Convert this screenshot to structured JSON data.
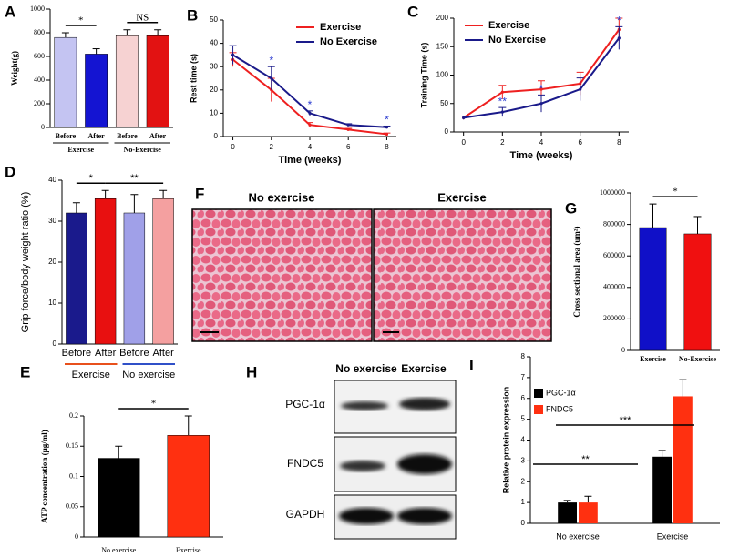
{
  "chart_data": [
    {
      "label": "A",
      "type": "bar",
      "ylabel": "Weight(g)",
      "categories": [
        "Before",
        "After",
        "Before",
        "After"
      ],
      "groups": [
        "Exercise",
        "No-Exercise"
      ],
      "values": [
        760,
        620,
        775,
        775
      ],
      "errors": [
        40,
        45,
        50,
        50
      ],
      "colors": [
        "#c4c4f2",
        "#1414d2",
        "#f6d2d2",
        "#e21212"
      ],
      "ylim": [
        0,
        1000
      ],
      "yticks": [
        0,
        200,
        400,
        600,
        800,
        1000
      ],
      "annotations": [
        "*",
        "NS"
      ]
    },
    {
      "label": "B",
      "type": "line",
      "xlabel": "Time (weeks)",
      "ylabel": "Rest time (s)",
      "x": [
        0,
        2,
        4,
        6,
        8
      ],
      "xlim": [
        -0.5,
        8.5
      ],
      "xticks": [
        0,
        2,
        4,
        6,
        8
      ],
      "ylim": [
        0,
        50
      ],
      "yticks": [
        0,
        10,
        20,
        30,
        40,
        50
      ],
      "legend": "upper right",
      "series": [
        {
          "name": "Exercise",
          "color": "#ee2020",
          "values": [
            33,
            20,
            5,
            3,
            1
          ],
          "errors": [
            3,
            5,
            1,
            0.5,
            0.5
          ]
        },
        {
          "name": "No Exercise",
          "color": "#1a1a8a",
          "values": [
            35,
            25,
            10,
            5,
            4
          ],
          "errors": [
            4,
            5,
            1,
            0.5,
            0.5
          ]
        }
      ],
      "annotations": [
        "*",
        "*",
        "*"
      ]
    },
    {
      "label": "C",
      "type": "line",
      "xlabel": "Time (weeks)",
      "ylabel": "Training Time (s)",
      "x": [
        0,
        2,
        4,
        6,
        8
      ],
      "xlim": [
        -0.5,
        8.5
      ],
      "xticks": [
        0,
        2,
        4,
        6,
        8
      ],
      "ylim": [
        0,
        200
      ],
      "yticks": [
        0,
        50,
        100,
        150,
        200
      ],
      "legend": "upper left",
      "series": [
        {
          "name": "Exercise",
          "color": "#ee2020",
          "values": [
            25,
            70,
            75,
            85,
            180
          ],
          "errors": [
            3,
            12,
            15,
            20,
            20
          ]
        },
        {
          "name": "No Exercise",
          "color": "#1a1a8a",
          "values": [
            25,
            35,
            50,
            75,
            165
          ],
          "errors": [
            3,
            8,
            15,
            20,
            20
          ]
        }
      ],
      "annotations": [
        "**",
        "*",
        "*"
      ]
    },
    {
      "label": "D",
      "type": "bar",
      "ylabel": "Grip force/body weight ratio (%)",
      "categories": [
        "Before",
        "After",
        "Before",
        "After"
      ],
      "groups": [
        "Exercise",
        "No exercise"
      ],
      "group_colors": [
        "#e8501c",
        "#3050c8"
      ],
      "values": [
        32,
        35.5,
        32,
        35.5
      ],
      "errors": [
        2.5,
        2,
        4.5,
        2
      ],
      "colors": [
        "#1a1a8c",
        "#e81010",
        "#a0a0e8",
        "#f4a0a0"
      ],
      "ylim": [
        0,
        40
      ],
      "yticks": [
        0,
        10,
        20,
        30,
        40
      ],
      "annotations": [
        "*",
        "**"
      ]
    },
    {
      "label": "G",
      "type": "bar",
      "ylabel": "Cross sectional area (um²)",
      "categories": [
        "Exercise",
        "No-Exercise"
      ],
      "values": [
        780000,
        740000
      ],
      "errors": [
        150000,
        110000
      ],
      "colors": [
        "#1010c8",
        "#f01010"
      ],
      "ylim": [
        0,
        1000000
      ],
      "yticks": [
        0,
        200000,
        400000,
        600000,
        800000,
        1000000
      ],
      "annotations": [
        "*"
      ]
    },
    {
      "label": "E",
      "type": "bar",
      "ylabel": "ATP concentration (μg/ml)",
      "categories": [
        "No exercise",
        "Exercise"
      ],
      "values": [
        0.13,
        0.168
      ],
      "errors": [
        0.02,
        0.032
      ],
      "colors": [
        "#000000",
        "#ff3010"
      ],
      "ylim": [
        0,
        0.2
      ],
      "yticks": [
        0,
        0.05,
        0.1,
        0.15,
        0.2
      ],
      "annotations": [
        "*"
      ]
    },
    {
      "label": "I",
      "type": "grouped_bar",
      "ylabel": "Relative protein expression",
      "categories": [
        "No exercise",
        "Exercise"
      ],
      "legend": "upper left",
      "ylim": [
        0,
        8
      ],
      "yticks": [
        0,
        1,
        2,
        3,
        4,
        5,
        6,
        7,
        8
      ],
      "series": [
        {
          "name": "PGC-1α",
          "color": "#000000",
          "values": [
            1,
            3.2
          ],
          "errors": [
            0.1,
            0.3
          ]
        },
        {
          "name": "FNDC5",
          "color": "#ff3010",
          "values": [
            1,
            6.1
          ],
          "errors": [
            0.3,
            0.8
          ]
        }
      ],
      "annotations": [
        "**",
        "***"
      ]
    }
  ],
  "histology": {
    "label": "F",
    "titles": [
      "No exercise",
      "Exercise"
    ]
  },
  "blot": {
    "label": "H",
    "columns": [
      "No exercise",
      "Exercise"
    ],
    "rows": [
      "PGC-1α",
      "FNDC5",
      "GAPDH"
    ]
  }
}
